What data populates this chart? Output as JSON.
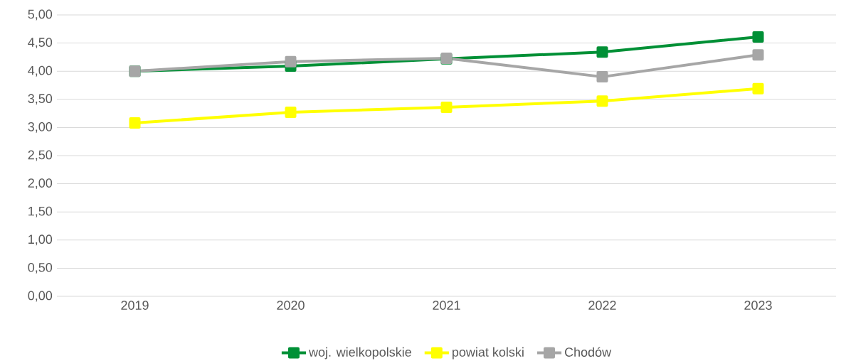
{
  "chart_data": {
    "type": "line",
    "categories": [
      "2019",
      "2020",
      "2021",
      "2022",
      "2023"
    ],
    "series": [
      {
        "name": "woj. wielkopolskie",
        "color": "#009036",
        "values": [
          4.0,
          4.09,
          4.22,
          4.34,
          4.61
        ]
      },
      {
        "name": "powiat kolski",
        "color": "#ffff00",
        "values": [
          3.08,
          3.27,
          3.36,
          3.47,
          3.69
        ]
      },
      {
        "name": "Chodów",
        "color": "#a6a6a6",
        "values": [
          4.0,
          4.17,
          4.23,
          3.9,
          4.29
        ]
      }
    ],
    "ylim": [
      0,
      5
    ],
    "yticks": [
      {
        "value": 0,
        "label": "0,00"
      },
      {
        "value": 0.5,
        "label": "0,50"
      },
      {
        "value": 1,
        "label": "1,00"
      },
      {
        "value": 1.5,
        "label": "1,50"
      },
      {
        "value": 2,
        "label": "2,00"
      },
      {
        "value": 2.5,
        "label": "2,50"
      },
      {
        "value": 3,
        "label": "3,00"
      },
      {
        "value": 3.5,
        "label": "3,50"
      },
      {
        "value": 4,
        "label": "4,00"
      },
      {
        "value": 4.5,
        "label": "4,50"
      },
      {
        "value": 5,
        "label": "5,00"
      }
    ],
    "grid": "y",
    "legend": "bottom",
    "marker": "square",
    "line_style": "solid"
  }
}
